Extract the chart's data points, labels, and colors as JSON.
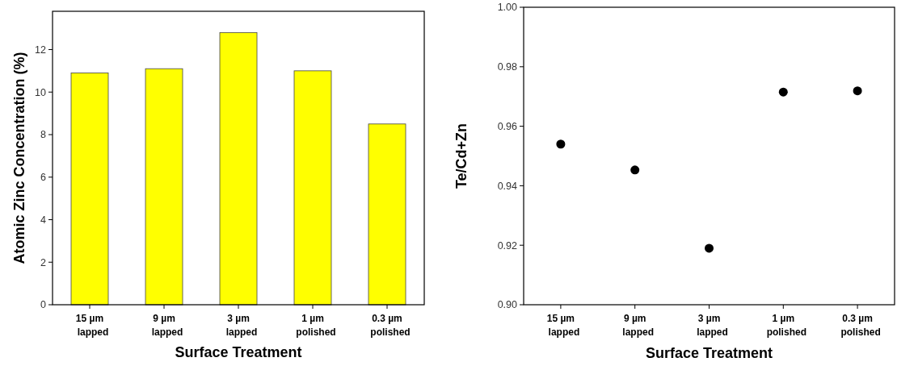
{
  "chart_data": [
    {
      "type": "bar",
      "xlabel": "Surface Treatment",
      "ylabel": "Atomic Zinc Concentration (%)",
      "categories": [
        "15 µm\nlapped",
        "9 µm\nlapped",
        "3 µm\nlapped",
        "1 µm\npolished",
        "0.3 µm\npolished"
      ],
      "values": [
        10.9,
        11.1,
        12.8,
        11.0,
        8.5
      ],
      "color": "#ffff00",
      "ylim": [
        0,
        13.8
      ],
      "yticks": [
        0,
        2,
        4,
        6,
        8,
        10,
        12
      ]
    },
    {
      "type": "scatter",
      "xlabel": "Surface Treatment",
      "ylabel": "Te/Cd+Zn",
      "categories": [
        "15 µm\nlapped",
        "9 µm\nlapped",
        "3 µm\nlapped",
        "1 µm\npolished",
        "0.3 µm\npolished"
      ],
      "values": [
        0.954,
        0.9453,
        0.919,
        0.9715,
        0.9719
      ],
      "color": "#000000",
      "marker": "circle",
      "ylim": [
        0.9,
        1.0
      ],
      "yticks": [
        {
          "value": 0.9,
          "label": "0.90"
        },
        {
          "value": 0.92,
          "label": "0.92"
        },
        {
          "value": 0.94,
          "label": "0.94"
        },
        {
          "value": 0.96,
          "label": "0.96"
        },
        {
          "value": 0.98,
          "label": "0.98"
        },
        {
          "value": 1.0,
          "label": "1.00"
        }
      ]
    }
  ]
}
